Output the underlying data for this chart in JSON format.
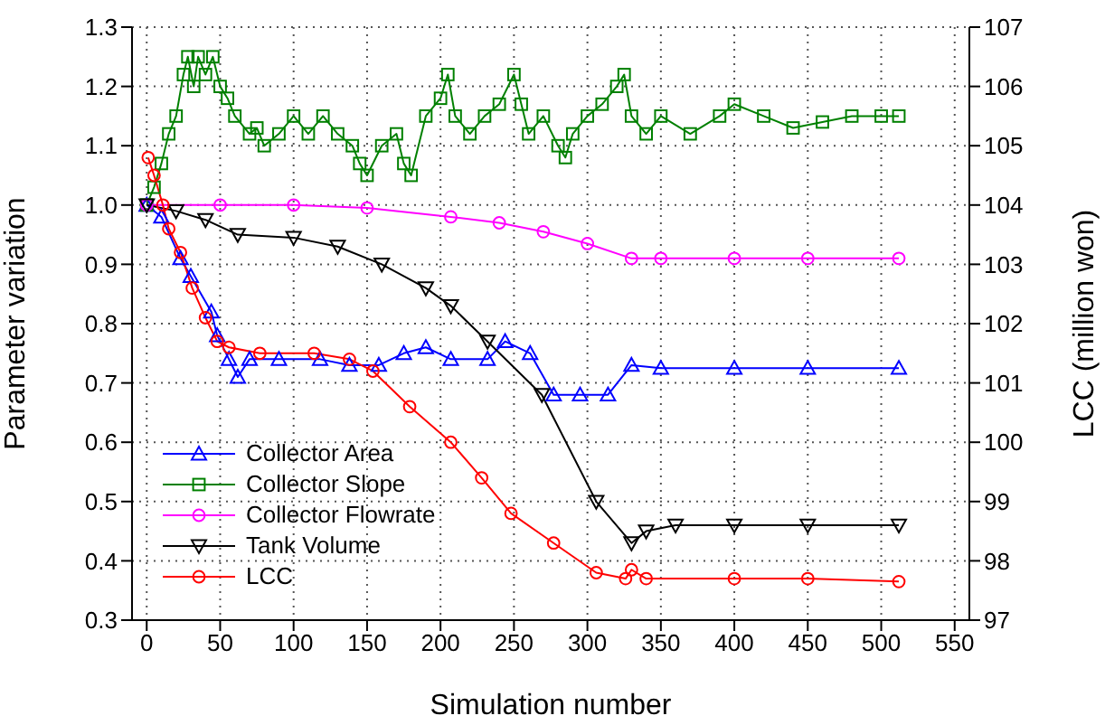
{
  "chart_data": {
    "type": "line",
    "xlabel": "Simulation number",
    "ylabel": "Parameter variation",
    "y2label": "LCC (million won)",
    "xlim": [
      -10,
      560
    ],
    "xticks": [
      0,
      50,
      100,
      150,
      200,
      250,
      300,
      350,
      400,
      450,
      500,
      550
    ],
    "ylim": [
      0.3,
      1.3
    ],
    "yticks": [
      {
        "value": 0.3,
        "label": "0.3"
      },
      {
        "value": 0.4,
        "label": "0.4"
      },
      {
        "value": 0.5,
        "label": "0.5"
      },
      {
        "value": 0.6,
        "label": "0.6"
      },
      {
        "value": 0.7,
        "label": "0.7"
      },
      {
        "value": 0.8,
        "label": "0.8"
      },
      {
        "value": 0.9,
        "label": "0.9"
      },
      {
        "value": 1.0,
        "label": "1.0"
      },
      {
        "value": 1.1,
        "label": "1.1"
      },
      {
        "value": 1.2,
        "label": "1.2"
      },
      {
        "value": 1.3,
        "label": "1.3"
      }
    ],
    "y2lim": [
      97,
      107
    ],
    "y2ticks": [
      97,
      98,
      99,
      100,
      101,
      102,
      103,
      104,
      105,
      106,
      107
    ],
    "grid": true,
    "legend": "bottom left",
    "line_style": "solid",
    "series": [
      {
        "name": "Collector Area",
        "color": "#0000ff",
        "marker": "triangle",
        "x": [
          0,
          10,
          23,
          30,
          44,
          48,
          56,
          62,
          70,
          90,
          118,
          138,
          158,
          175,
          190,
          207,
          232,
          244,
          261,
          277,
          295,
          314,
          330,
          350,
          400,
          450,
          512
        ],
        "values": [
          1.0,
          0.98,
          0.91,
          0.88,
          0.82,
          0.78,
          0.74,
          0.71,
          0.74,
          0.74,
          0.74,
          0.73,
          0.73,
          0.75,
          0.76,
          0.74,
          0.74,
          0.77,
          0.75,
          0.68,
          0.68,
          0.68,
          0.73,
          0.725,
          0.725,
          0.725,
          0.725
        ]
      },
      {
        "name": "Collector Slope",
        "color": "#008000",
        "marker": "square",
        "x": [
          0,
          5,
          10,
          15,
          20,
          25,
          28,
          32,
          35,
          40,
          45,
          50,
          55,
          60,
          70,
          75,
          80,
          90,
          100,
          110,
          120,
          130,
          140,
          145,
          150,
          160,
          170,
          175,
          180,
          190,
          200,
          205,
          210,
          220,
          230,
          240,
          250,
          255,
          260,
          270,
          280,
          285,
          290,
          300,
          310,
          320,
          325,
          330,
          340,
          350,
          370,
          390,
          400,
          420,
          440,
          460,
          480,
          500,
          512
        ],
        "values": [
          1.0,
          1.03,
          1.07,
          1.12,
          1.15,
          1.22,
          1.25,
          1.2,
          1.25,
          1.22,
          1.25,
          1.2,
          1.18,
          1.15,
          1.12,
          1.13,
          1.1,
          1.12,
          1.15,
          1.12,
          1.15,
          1.12,
          1.1,
          1.07,
          1.05,
          1.1,
          1.12,
          1.07,
          1.05,
          1.15,
          1.18,
          1.22,
          1.15,
          1.12,
          1.15,
          1.17,
          1.22,
          1.17,
          1.12,
          1.15,
          1.1,
          1.08,
          1.12,
          1.15,
          1.17,
          1.2,
          1.22,
          1.15,
          1.12,
          1.15,
          1.12,
          1.15,
          1.17,
          1.15,
          1.13,
          1.14,
          1.15,
          1.15,
          1.15
        ]
      },
      {
        "name": "Collector Flowrate",
        "color": "#ff00ff",
        "marker": "circle",
        "x": [
          0,
          50,
          100,
          150,
          207,
          240,
          270,
          300,
          330,
          350,
          400,
          450,
          512
        ],
        "values": [
          1.0,
          1.0,
          1.0,
          0.995,
          0.98,
          0.97,
          0.955,
          0.935,
          0.91,
          0.91,
          0.91,
          0.91,
          0.91
        ]
      },
      {
        "name": "Tank Volume",
        "color": "#000000",
        "marker": "triangle_down",
        "x": [
          0,
          20,
          40,
          62,
          100,
          130,
          160,
          190,
          207,
          232,
          269,
          306,
          330,
          340,
          360,
          400,
          450,
          512
        ],
        "values": [
          1.0,
          0.99,
          0.975,
          0.95,
          0.945,
          0.93,
          0.9,
          0.86,
          0.83,
          0.77,
          0.68,
          0.5,
          0.43,
          0.45,
          0.46,
          0.46,
          0.46,
          0.46
        ]
      },
      {
        "name": "LCC",
        "color": "#ff0000",
        "marker": "circle",
        "axis": "y2",
        "x": [
          1,
          5,
          11,
          15,
          23,
          31,
          40,
          48,
          56,
          77,
          114,
          138,
          154,
          179,
          207,
          228,
          248,
          277,
          306,
          326,
          330,
          340,
          400,
          450,
          512
        ],
        "values": [
          104.8,
          104.5,
          104.0,
          103.6,
          103.2,
          102.6,
          102.1,
          101.7,
          101.6,
          101.5,
          101.5,
          101.4,
          101.2,
          100.6,
          100.0,
          99.4,
          98.8,
          98.3,
          97.8,
          97.7,
          97.85,
          97.7,
          97.7,
          97.7,
          97.65
        ]
      }
    ]
  }
}
